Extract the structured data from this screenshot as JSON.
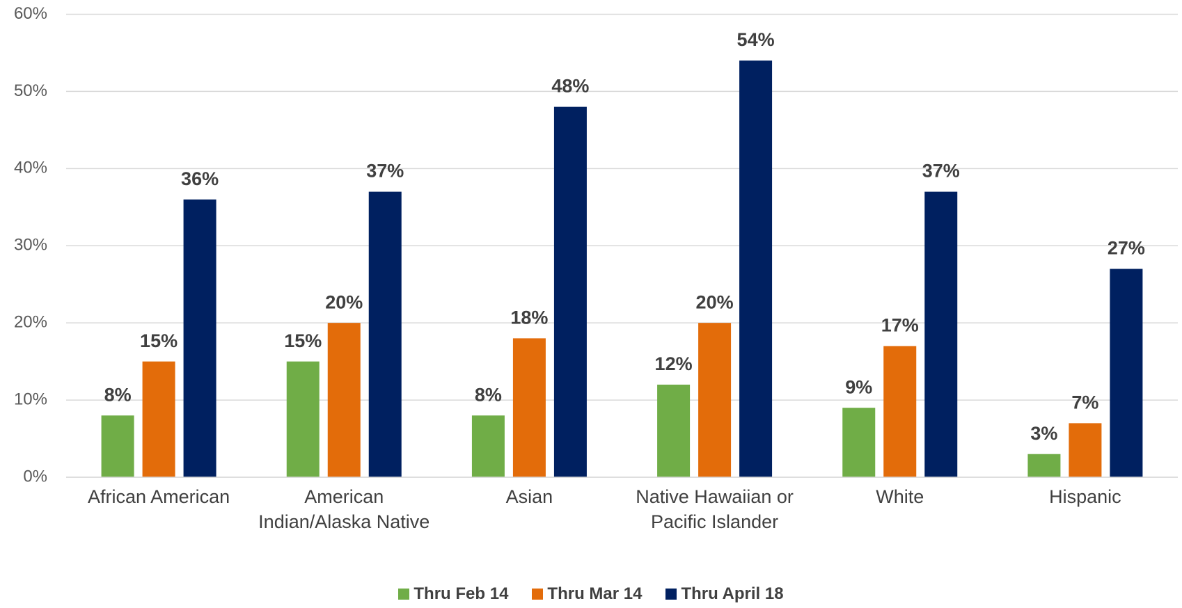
{
  "chart_data": {
    "type": "bar",
    "categories": [
      "African American",
      "American Indian/Alaska Native",
      "Asian",
      "Native Hawaiian or Pacific Islander",
      "White",
      "Hispanic"
    ],
    "series": [
      {
        "name": "Thru Feb 14",
        "color": "#70ad47",
        "values": [
          8,
          15,
          8,
          12,
          9,
          3
        ],
        "value_labels": [
          "8%",
          "15%",
          "8%",
          "12%",
          "9%",
          "3%"
        ]
      },
      {
        "name": "Thru Mar 14",
        "color": "#e36c0a",
        "values": [
          15,
          20,
          18,
          20,
          17,
          7
        ],
        "value_labels": [
          "15%",
          "20%",
          "18%",
          "20%",
          "17%",
          "7%"
        ]
      },
      {
        "name": "Thru April 18",
        "color": "#002060",
        "values": [
          36,
          37,
          48,
          54,
          37,
          27
        ],
        "value_labels": [
          "36%",
          "37%",
          "48%",
          "54%",
          "37%",
          "27%"
        ]
      }
    ],
    "ylim": [
      0,
      60
    ],
    "yticks": [
      {
        "value": 0,
        "label": "0%"
      },
      {
        "value": 10,
        "label": "10%"
      },
      {
        "value": 20,
        "label": "20%"
      },
      {
        "value": 30,
        "label": "30%"
      },
      {
        "value": 40,
        "label": "40%"
      },
      {
        "value": 50,
        "label": "50%"
      },
      {
        "value": 60,
        "label": "60%"
      }
    ],
    "grid": true,
    "legend": "bottom"
  }
}
